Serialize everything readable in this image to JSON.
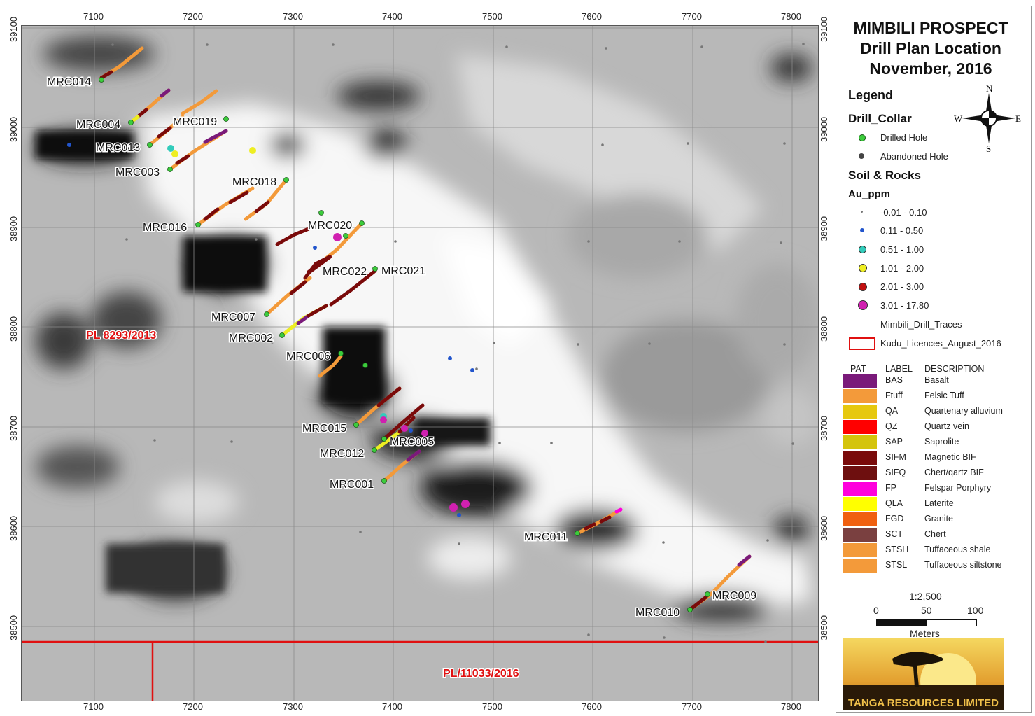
{
  "title": {
    "line1": "MIMBILI PROSPECT",
    "line2": "Drill Plan Location",
    "line3": "November, 2016"
  },
  "axes": {
    "x_ticks": [
      "7100",
      "7200",
      "7300",
      "7400",
      "7500",
      "7600",
      "7700",
      "7800"
    ],
    "y_ticks": [
      "39100",
      "39000",
      "38900",
      "38800",
      "38700",
      "38600",
      "38500"
    ]
  },
  "north_arrow": {
    "n": "N",
    "s": "S",
    "e": "E",
    "w": "W"
  },
  "legend": {
    "heading": "Legend",
    "drill_collar_heading": "Drill_Collar",
    "drill_collar_items": [
      {
        "label": "Drilled Hole",
        "color": "#3ccc3c"
      },
      {
        "label": "Abandoned Hole",
        "color": "#444444"
      }
    ],
    "soil_heading": "Soil & Rocks",
    "au_heading": "Au_ppm",
    "au_items": [
      {
        "label": "-0.01 - 0.10",
        "color": "#777777"
      },
      {
        "label": "0.11 - 0.50",
        "color": "#2255cc"
      },
      {
        "label": "0.51 - 1.00",
        "color": "#33ccbb"
      },
      {
        "label": "1.01 - 2.00",
        "color": "#eeee22"
      },
      {
        "label": "2.01 - 3.00",
        "color": "#c01010"
      },
      {
        "label": "3.01 - 17.80",
        "color": "#d020b0"
      }
    ],
    "traces_label": "Mimbili_Drill_Traces",
    "licence_label": "Kudu_Licences_August_2016",
    "pat_headers": {
      "pat": "PAT",
      "label": "LABEL",
      "description": "DESCRIPTION"
    },
    "pat_rows": [
      {
        "label": "BAS",
        "description": "Basalt",
        "color": "#7a1a7a"
      },
      {
        "label": "Ftuff",
        "description": "Felsic Tuff",
        "color": "#f39a3a"
      },
      {
        "label": "QA",
        "description": "Quartenary alluvium",
        "color": "#e6c80f"
      },
      {
        "label": "QZ",
        "description": "Quartz vein",
        "color": "#ff0000"
      },
      {
        "label": "SAP",
        "description": "Saprolite",
        "color": "#d4c40c"
      },
      {
        "label": "SIFM",
        "description": "Magnetic BIF",
        "color": "#7a0a0a"
      },
      {
        "label": "SIFQ",
        "description": "Chert/qartz BIF",
        "color": "#6e0f0f"
      },
      {
        "label": "FP",
        "description": "Felspar Porphyry",
        "color": "#ff00dd"
      },
      {
        "label": "QLA",
        "description": "Laterite",
        "color": "#ffff00"
      },
      {
        "label": "FGD",
        "description": "Granite",
        "color": "#f06010"
      },
      {
        "label": "SCT",
        "description": "Chert",
        "color": "#7a4040"
      },
      {
        "label": "STSH",
        "description": "Tuffaceous shale",
        "color": "#f39a3a"
      },
      {
        "label": "STSL",
        "description": "Tuffaceous siltstone",
        "color": "#f39a3a"
      }
    ],
    "scale_text": "1:2,500",
    "scale_ticks": [
      "0",
      "50",
      "100"
    ],
    "scale_units": "Meters"
  },
  "logo_text": "TANGA RESOURCES LIMITED",
  "licence_labels": {
    "upper": "PL 8293/2013",
    "lower": "PL/11033/2016"
  },
  "drill_holes": [
    {
      "name": "MRC014"
    },
    {
      "name": "MRC004"
    },
    {
      "name": "MRC019"
    },
    {
      "name": "MRC013"
    },
    {
      "name": "MRC003"
    },
    {
      "name": "MRC018"
    },
    {
      "name": "MRC016"
    },
    {
      "name": "MRC020"
    },
    {
      "name": "MRC022"
    },
    {
      "name": "MRC021"
    },
    {
      "name": "MRC007"
    },
    {
      "name": "MRC002"
    },
    {
      "name": "MRC006"
    },
    {
      "name": "MRC015"
    },
    {
      "name": "MRC005"
    },
    {
      "name": "MRC012"
    },
    {
      "name": "MRC001"
    },
    {
      "name": "MRC011"
    },
    {
      "name": "MRC009"
    },
    {
      "name": "MRC010"
    }
  ]
}
